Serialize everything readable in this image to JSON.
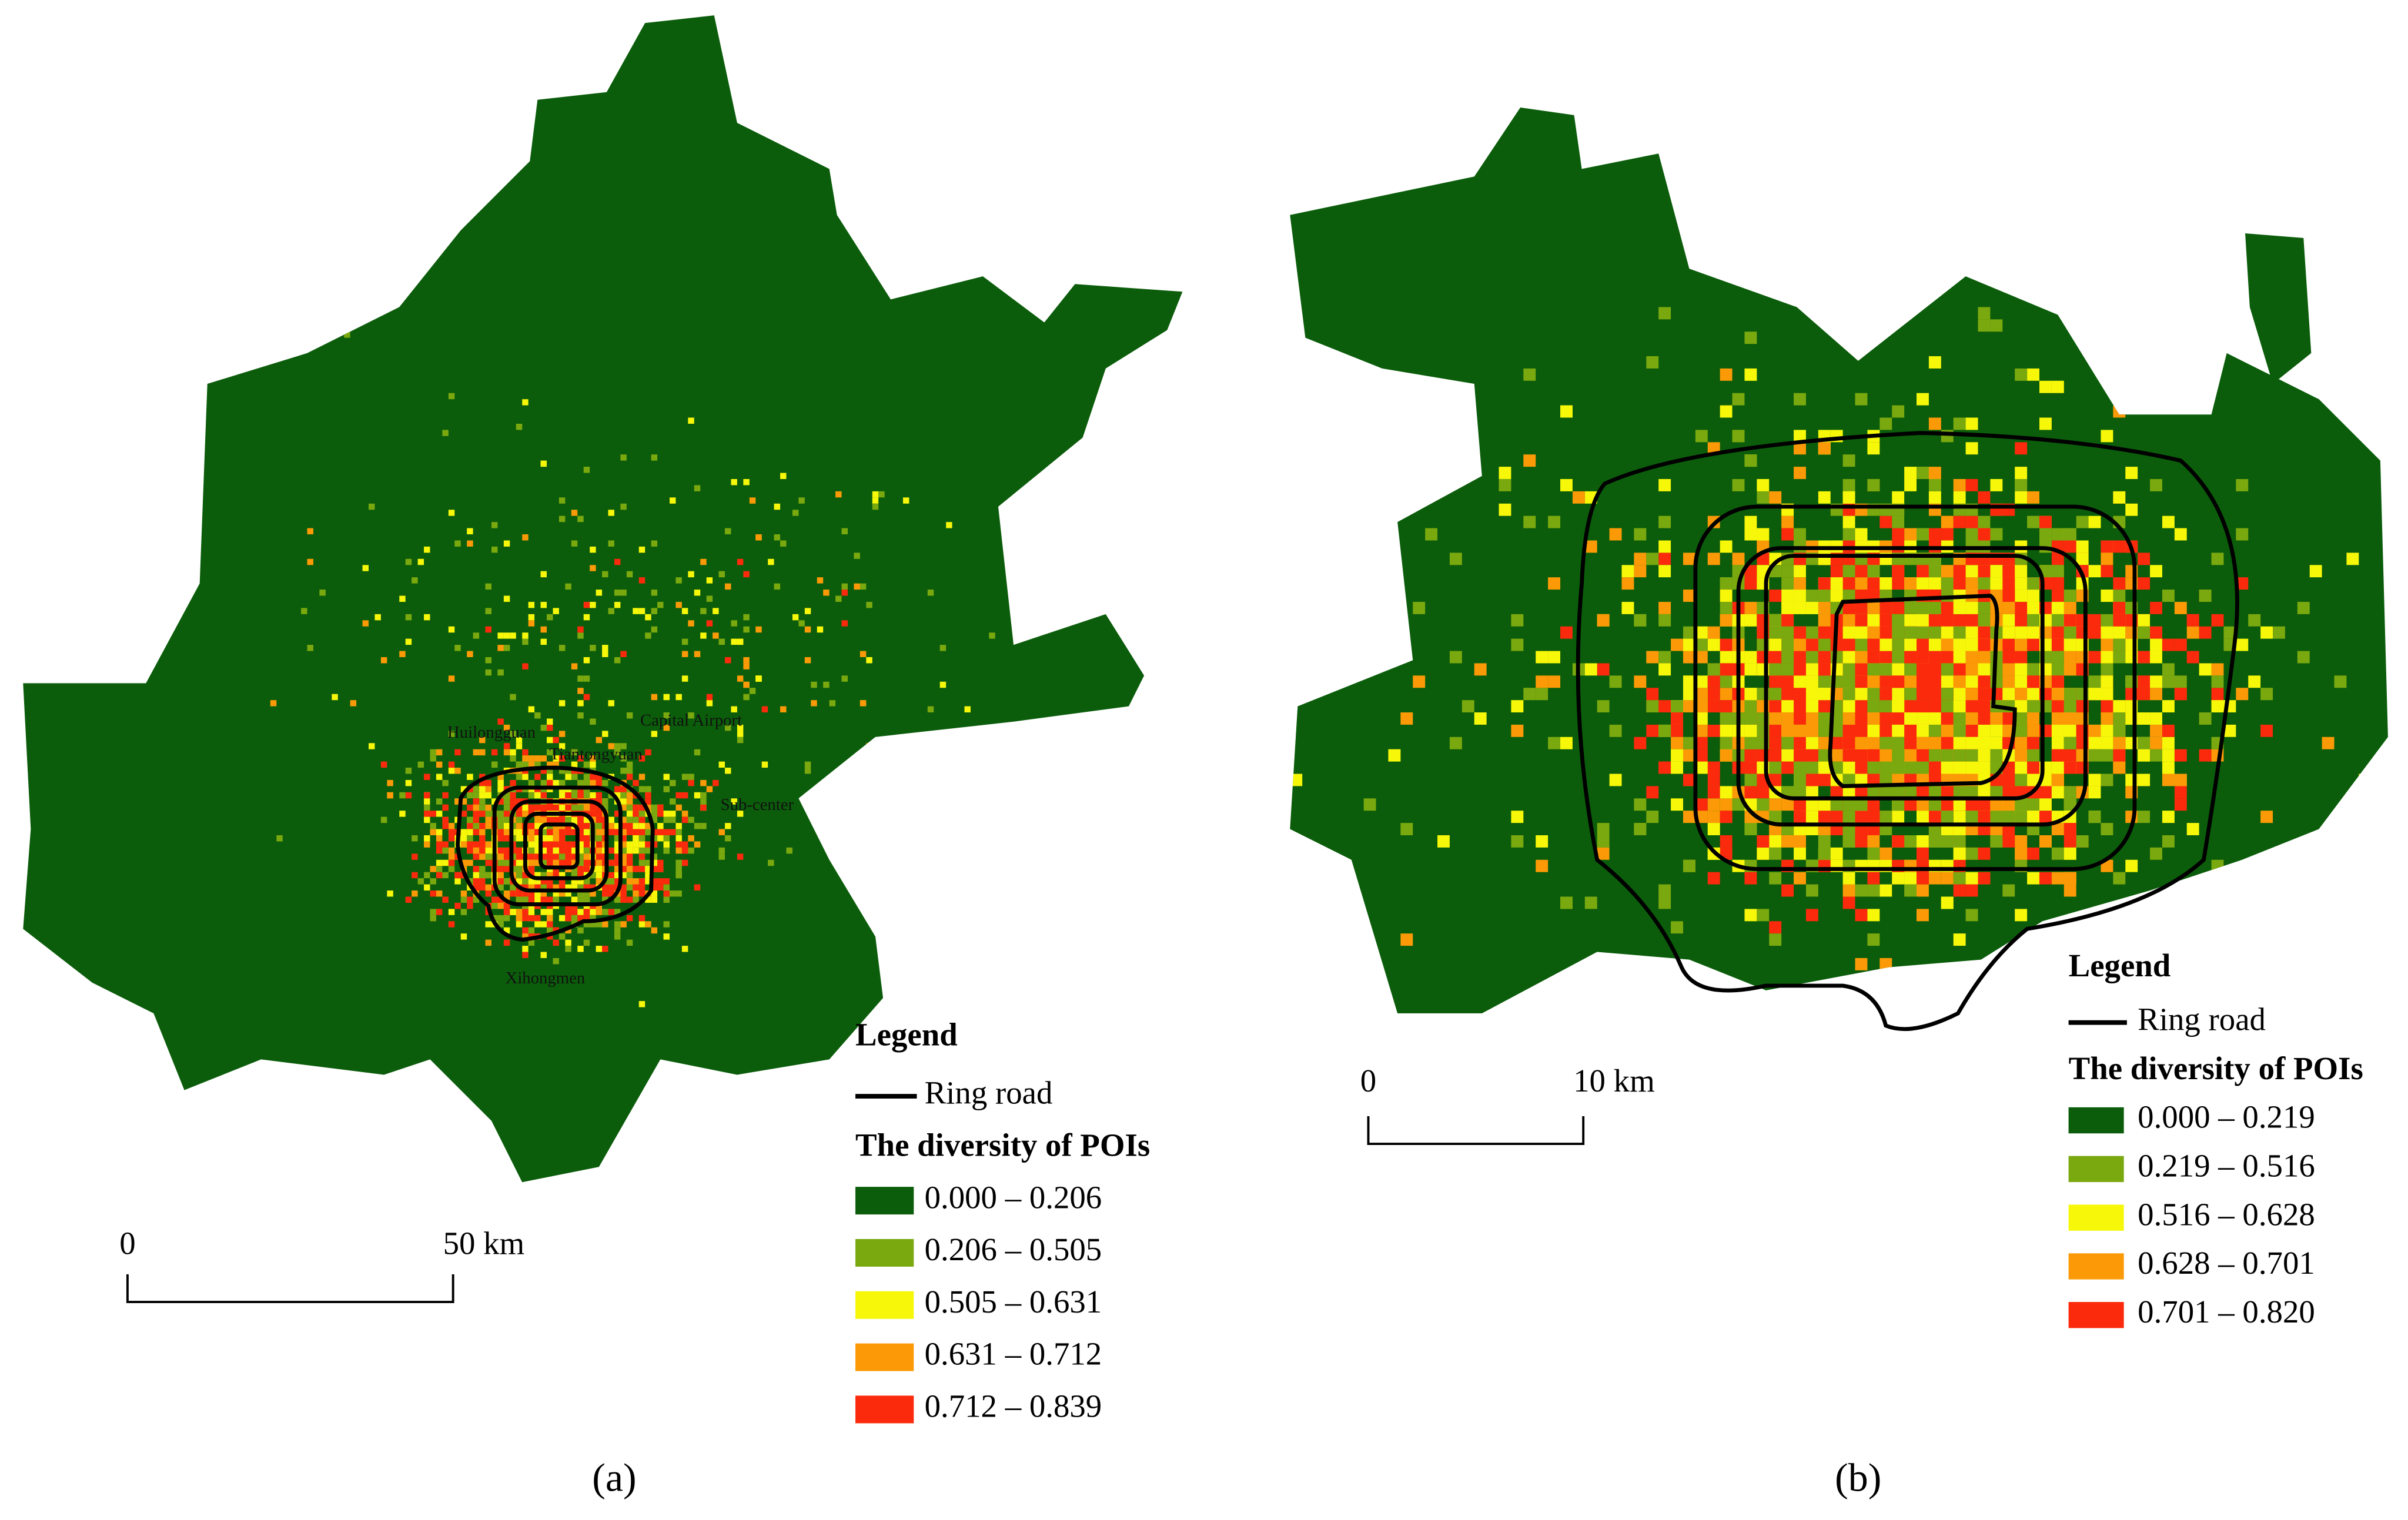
{
  "panels": [
    {
      "label": "(a)",
      "places": [
        "Huilongguan",
        "Tiantongyuan",
        "Capital Airport",
        "Sub-center",
        "Xihongmen"
      ],
      "scale_bar": {
        "start": "0",
        "end": "50 km"
      },
      "legend": {
        "title": "Legend",
        "line_label": "Ring road",
        "class_title": "The diversity of POIs",
        "classes": [
          {
            "range": "0.000 – 0.206",
            "color": "#0b5d0b"
          },
          {
            "range": "0.206 – 0.505",
            "color": "#7aa80f"
          },
          {
            "range": "0.505 – 0.631",
            "color": "#f7f70a"
          },
          {
            "range": "0.631 – 0.712",
            "color": "#fb9a06"
          },
          {
            "range": "0.712 – 0.839",
            "color": "#fb2a0c"
          }
        ]
      }
    },
    {
      "label": "(b)",
      "scale_bar": {
        "start": "0",
        "end": "10 km"
      },
      "legend": {
        "title": "Legend",
        "line_label": "Ring road",
        "class_title": "The diversity of POIs",
        "classes": [
          {
            "range": "0.000 – 0.219",
            "color": "#0b5d0b"
          },
          {
            "range": "0.219 – 0.516",
            "color": "#7aa80f"
          },
          {
            "range": "0.516 – 0.628",
            "color": "#f7f70a"
          },
          {
            "range": "0.628 – 0.701",
            "color": "#fb9a06"
          },
          {
            "range": "0.701 – 0.820",
            "color": "#fb2a0c"
          }
        ]
      }
    }
  ]
}
